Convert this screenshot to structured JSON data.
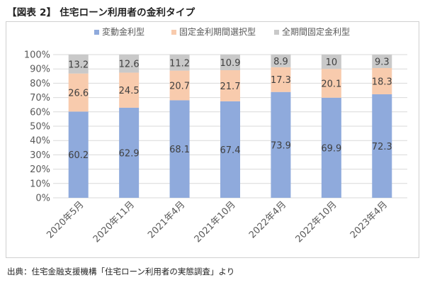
{
  "figure_title": "【図表 2】 住宅ローン利用者の金利タイプ",
  "source": "出典：住宅金融支援機構「住宅ローン利用者の実態調査」より",
  "chart_data": {
    "type": "bar",
    "stacked": true,
    "categories": [
      "2020年5月",
      "2020年11月",
      "2021年4月",
      "2021年10月",
      "2022年4月",
      "2022年10月",
      "2023年4月"
    ],
    "series": [
      {
        "name": "変動金利型",
        "color": "#8faadc",
        "values": [
          60.2,
          62.9,
          68.1,
          67.4,
          73.9,
          69.9,
          72.3
        ]
      },
      {
        "name": "固定金利期間選択型",
        "color": "#f8cbad",
        "values": [
          26.6,
          24.5,
          20.7,
          21.7,
          17.3,
          20.1,
          18.3
        ]
      },
      {
        "name": "全期間固定金利型",
        "color": "#c9c9c9",
        "values": [
          13.2,
          12.6,
          11.2,
          10.9,
          8.9,
          10,
          9.3
        ]
      }
    ],
    "yticks": [
      "0%",
      "10%",
      "20%",
      "30%",
      "40%",
      "50%",
      "60%",
      "70%",
      "80%",
      "90%",
      "100%"
    ],
    "ylim": [
      0,
      100
    ],
    "legend_position": "top",
    "gridlines": true
  }
}
